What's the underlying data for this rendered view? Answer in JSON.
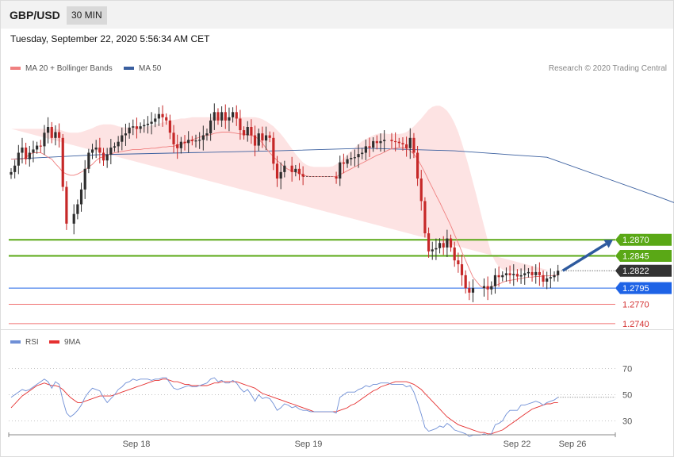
{
  "header": {
    "pair": "GBP/USD",
    "timeframe": "30 MIN",
    "timestamp": "Tuesday, September 22, 2020 5:56:34 AM CET"
  },
  "legend": {
    "ma20": "MA 20 + Bollinger Bands",
    "ma50": "MA 50",
    "credit": "Research © 2020 Trading Central",
    "rsi": "RSI",
    "rsi_ma": "9MA"
  },
  "colors": {
    "bull": "#2e2e2e",
    "bear": "#c62828",
    "ma20": "#f08080",
    "ma50": "#3a5f9f",
    "band": "#fde3e3",
    "resistance": "#5aa816",
    "pivot": "#1e63e6",
    "support": "#f07070",
    "current": "#333333",
    "arrow": "#2e5a9e",
    "rsi": "#6f8fd6",
    "rsi_ma": "#e53030"
  },
  "chart_data": [
    {
      "type": "candlestick",
      "title": "GBP/USD",
      "interval": "30 MIN",
      "ylim": [
        1.2725,
        1.3125
      ],
      "x_labels": [
        "Sep 18",
        "Sep 19",
        "Sep 22",
        "Sep 26"
      ],
      "levels": [
        {
          "value": 1.287,
          "label": "1.2870",
          "kind": "resistance"
        },
        {
          "value": 1.2845,
          "label": "1.2845",
          "kind": "resistance"
        },
        {
          "value": 1.2822,
          "label": "1.2822",
          "kind": "current"
        },
        {
          "value": 1.2795,
          "label": "1.2795",
          "kind": "pivot"
        },
        {
          "value": 1.277,
          "label": "1.2770",
          "kind": "support"
        },
        {
          "value": 1.274,
          "label": "1.2740",
          "kind": "support"
        }
      ],
      "close": [
        1.2975,
        1.2985,
        1.3005,
        1.3013,
        1.2995,
        1.3005,
        1.301,
        1.3016,
        1.3015,
        1.3036,
        1.3045,
        1.3028,
        1.3037,
        1.3028,
        1.2952,
        1.2895,
        1.2895,
        1.291,
        1.2925,
        1.2948,
        1.298,
        1.3005,
        1.301,
        1.3013,
        1.3005,
        1.2993,
        1.3002,
        1.3013,
        1.3015,
        1.3022,
        1.3032,
        1.3035,
        1.3044,
        1.3046,
        1.3042,
        1.3046,
        1.3048,
        1.305,
        1.3053,
        1.3058,
        1.3065,
        1.306,
        1.3055,
        1.3036,
        1.3018,
        1.3012,
        1.3022,
        1.302,
        1.3025,
        1.3023,
        1.3024,
        1.3025,
        1.3032,
        1.3035,
        1.3055,
        1.3068,
        1.3055,
        1.3068,
        1.3055,
        1.306,
        1.3068,
        1.3058,
        1.304,
        1.3032,
        1.3045,
        1.3032,
        1.3016,
        1.3035,
        1.3024,
        1.3032,
        1.3028,
        1.2988,
        1.2965,
        1.2975,
        1.2985,
        1.2985,
        1.2975,
        1.298,
        1.2972,
        1.2968,
        1.2968,
        1.2968,
        1.2968,
        1.2968,
        1.2968,
        1.2968,
        1.2968,
        1.2968,
        1.2965,
        1.299,
        1.2988,
        1.2995,
        1.2997,
        1.2998,
        1.3003,
        1.3005,
        1.3015,
        1.3013,
        1.3023,
        1.302,
        1.3023,
        1.3025,
        1.3025,
        1.3023,
        1.3022,
        1.302,
        1.3018,
        1.3012,
        1.3028,
        1.3005,
        1.2965,
        1.293,
        1.288,
        1.2852,
        1.2855,
        1.2857,
        1.2865,
        1.2858,
        1.2872,
        1.2858,
        1.2838,
        1.2832,
        1.2815,
        1.2795,
        1.2788,
        1.2795,
        1.2795,
        1.2795,
        1.2798,
        1.2793,
        1.2798,
        1.2815,
        1.2812,
        1.2815,
        1.2818,
        1.2815,
        1.2817,
        1.2813,
        1.2815,
        1.2818,
        1.282,
        1.2815,
        1.282,
        1.2815,
        1.2805,
        1.281,
        1.2812,
        1.2815,
        1.2822
      ],
      "ma20": [
        1.2995,
        1.2995,
        1.2995,
        1.2995,
        1.2998,
        1.3002,
        1.3005,
        1.3005,
        1.3005,
        1.3002,
        1.2998,
        1.2995,
        1.2988,
        1.2982,
        1.2975,
        1.2972,
        1.297,
        1.297,
        1.2972,
        1.2975,
        1.2978,
        1.2983,
        1.2987,
        1.2993,
        1.2997,
        1.2999,
        1.3001,
        1.3003,
        1.3005,
        1.3006,
        1.3007,
        1.3008,
        1.3009,
        1.301,
        1.301,
        1.301,
        1.3011,
        1.3011,
        1.3012,
        1.3012,
        1.3013,
        1.3014,
        1.3014,
        1.3015,
        1.3015,
        1.3017,
        1.3018,
        1.302,
        1.3023,
        1.3025,
        1.3027,
        1.3029,
        1.3031,
        1.3032,
        1.3033,
        1.3035,
        1.3036,
        1.3037,
        1.3037,
        1.3037,
        1.3036,
        1.3035,
        1.3034,
        1.3034,
        1.3033,
        1.3032,
        1.303,
        1.3026,
        1.302,
        1.3012,
        1.3005,
        1.2999,
        1.2993,
        1.2988,
        1.2983,
        1.2979,
        1.2977,
        1.2975,
        1.2973,
        1.297,
        1.2969,
        1.2968,
        1.2968,
        1.2968,
        1.2968,
        1.2968,
        1.2968,
        1.2968,
        1.2968,
        1.2971,
        1.2974,
        1.2977,
        1.298,
        1.2983,
        1.2986,
        1.2989,
        1.2992,
        1.2995,
        1.2998,
        1.3001,
        1.3003,
        1.3006,
        1.3009,
        1.3011,
        1.3012,
        1.3013,
        1.3013,
        1.3012,
        1.3008,
        1.3003,
        1.2995,
        1.2985,
        1.2974,
        1.2962,
        1.2951,
        1.2939,
        1.2928,
        1.2916,
        1.2904,
        1.2892,
        1.2878,
        1.2865,
        1.2851,
        1.2838,
        1.2825,
        1.2812,
        1.2805,
        1.2798,
        1.2795,
        1.2796,
        1.2797,
        1.2799,
        1.2801,
        1.2804,
        1.2806,
        1.2807,
        1.2808,
        1.2809,
        1.281,
        1.2811,
        1.2812,
        1.2812,
        1.2813,
        1.2813,
        1.2814,
        1.2814,
        1.2814,
        1.2815,
        1.2815
      ],
      "bb_upper": [
        1.3042,
        1.3042,
        1.3042,
        1.3042,
        1.3042,
        1.3042,
        1.3042,
        1.3042,
        1.3042,
        1.3042,
        1.3042,
        1.3042,
        1.3042,
        1.3041,
        1.3039,
        1.3037,
        1.3036,
        1.3036,
        1.3036,
        1.3037,
        1.3039,
        1.3041,
        1.3043,
        1.3046,
        1.3048,
        1.3049,
        1.3049,
        1.3049,
        1.3048,
        1.3046,
        1.3045,
        1.3044,
        1.3044,
        1.3044,
        1.3044,
        1.3044,
        1.3045,
        1.3046,
        1.3047,
        1.3049,
        1.305,
        1.3052,
        1.3054,
        1.3055,
        1.3056,
        1.3057,
        1.3058,
        1.3058,
        1.3059,
        1.306,
        1.306,
        1.306,
        1.306,
        1.306,
        1.306,
        1.306,
        1.306,
        1.306,
        1.306,
        1.306,
        1.306,
        1.306,
        1.306,
        1.306,
        1.306,
        1.306,
        1.306,
        1.3059,
        1.3057,
        1.3054,
        1.305,
        1.3046,
        1.304,
        1.3034,
        1.3027,
        1.3019,
        1.3011,
        1.3003,
        1.2996,
        1.299,
        1.2986,
        1.2984,
        1.2983,
        1.2983,
        1.2983,
        1.2983,
        1.2983,
        1.2984,
        1.2987,
        1.2991,
        1.2996,
        1.3002,
        1.3008,
        1.3013,
        1.3018,
        1.3023,
        1.3026,
        1.3029,
        1.3032,
        1.3034,
        1.3035,
        1.3035,
        1.3034,
        1.3034,
        1.3034,
        1.3034,
        1.3035,
        1.3037,
        1.3041,
        1.3046,
        1.3052,
        1.3058,
        1.3065,
        1.3072,
        1.3076,
        1.3078,
        1.3078,
        1.3075,
        1.307,
        1.3062,
        1.3051,
        1.3037,
        1.302,
        1.3001,
        1.2981,
        1.2959,
        1.2937,
        1.2914,
        1.2891,
        1.2869,
        1.2848,
        1.2836,
        1.2828,
        1.2824,
        1.2822,
        1.2822,
        1.2822,
        1.2822,
        1.2822,
        1.2822,
        1.2822,
        1.2822,
        1.2822,
        1.2822,
        1.2822,
        1.2822,
        1.2822
      ],
      "bb_lower": [
        1.2945,
        1.2945,
        1.2945,
        1.2945,
        1.2943,
        1.2939,
        1.2932,
        1.2922,
        1.2909,
        1.2894,
        1.2884,
        1.288,
        1.288,
        1.288,
        1.288,
        1.2882,
        1.2884,
        1.2889,
        1.2896,
        1.2904,
        1.2914,
        1.2924,
        1.2934,
        1.2943,
        1.2951,
        1.2958,
        1.2964,
        1.2969,
        1.2973,
        1.2977,
        1.298,
        1.2983,
        1.2986,
        1.2989,
        1.2991,
        1.2993,
        1.2995,
        1.2996,
        1.2997,
        1.2998,
        1.2998,
        1.2998,
        1.2998,
        1.2998,
        1.2998,
        1.2998,
        1.2998,
        1.2998,
        1.2998,
        1.2997,
        1.2997,
        1.2996,
        1.2996,
        1.2995,
        1.2995,
        1.2996,
        1.2996,
        1.2997,
        1.2997,
        1.2997,
        1.2996,
        1.2995,
        1.2994,
        1.2993,
        1.2992,
        1.2991,
        1.2989,
        1.2986,
        1.2982,
        1.2977,
        1.2972,
        1.2966,
        1.296,
        1.2955,
        1.295,
        1.2946,
        1.2942,
        1.2939,
        1.2937,
        1.2936,
        1.2935,
        1.2935,
        1.2935,
        1.2935,
        1.2935,
        1.2935,
        1.2936,
        1.2938,
        1.294,
        1.2943,
        1.2947,
        1.2951,
        1.2955,
        1.2958,
        1.2961,
        1.2963,
        1.2965,
        1.2967,
        1.2969,
        1.297,
        1.2972,
        1.2973,
        1.2975,
        1.2976,
        1.2978,
        1.2979,
        1.2978,
        1.2972,
        1.2962,
        1.2947,
        1.293,
        1.291,
        1.289,
        1.287,
        1.2851,
        1.2833,
        1.2818,
        1.2806,
        1.2797,
        1.2791,
        1.2786,
        1.2783,
        1.2781,
        1.278,
        1.2779,
        1.2779,
        1.2779,
        1.278,
        1.2781,
        1.2783,
        1.2785,
        1.2787,
        1.2789,
        1.2791,
        1.2793,
        1.2795,
        1.2797,
        1.2799,
        1.28,
        1.2801,
        1.2802,
        1.2803,
        1.2803,
        1.2803,
        1.2803,
        1.2803,
        1.2803,
        1.2803,
        1.2803
      ],
      "ma50_points": [
        [
          0,
          1.2995
        ],
        [
          24,
          1.3002
        ],
        [
          48,
          1.3005
        ],
        [
          72,
          1.3008
        ],
        [
          96,
          1.3012
        ],
        [
          120,
          1.3008
        ],
        [
          145,
          1.2998
        ],
        [
          176,
          1.2935
        ],
        [
          205,
          1.2872
        ],
        [
          215,
          1.2856
        ],
        [
          222,
          1.2842
        ]
      ]
    },
    {
      "type": "line",
      "title": "RSI",
      "ylim": [
        15,
        85
      ],
      "y_ticks": [
        "70",
        "50",
        "30"
      ],
      "series": [
        {
          "name": "RSI",
          "values": [
            48,
            50,
            52,
            54,
            53,
            54,
            56,
            58,
            60,
            62,
            60,
            55,
            60,
            58,
            46,
            36,
            33,
            35,
            38,
            42,
            48,
            52,
            55,
            54,
            53,
            48,
            44,
            47,
            50,
            54,
            56,
            59,
            60,
            62,
            61,
            62,
            62,
            62,
            61,
            62,
            62,
            63,
            63,
            59,
            55,
            54,
            55,
            56,
            57,
            56,
            56,
            57,
            58,
            59,
            62,
            63,
            60,
            61,
            59,
            59,
            61,
            59,
            55,
            52,
            54,
            50,
            45,
            50,
            47,
            48,
            47,
            43,
            38,
            40,
            43,
            42,
            40,
            41,
            39,
            38,
            38,
            37,
            37,
            37,
            37,
            37,
            37,
            37,
            36,
            48,
            50,
            52,
            52,
            52,
            54,
            55,
            57,
            56,
            58,
            58,
            59,
            59,
            59,
            58,
            58,
            58,
            58,
            56,
            57,
            52,
            44,
            35,
            25,
            22,
            23,
            24,
            26,
            25,
            28,
            26,
            23,
            22,
            21,
            20,
            18,
            19,
            19,
            19,
            20,
            19,
            20,
            27,
            28,
            30,
            35,
            38,
            38,
            38,
            42,
            42,
            43,
            44,
            45,
            44,
            42,
            44,
            45,
            46,
            48
          ]
        },
        {
          "name": "9MA",
          "values": [
            40,
            43,
            46,
            49,
            51,
            53,
            55,
            57,
            58,
            59,
            58,
            57,
            57,
            56,
            54,
            51,
            48,
            46,
            44,
            44,
            45,
            46,
            47,
            48,
            49,
            49,
            49,
            49,
            50,
            51,
            52,
            53,
            54,
            55,
            56,
            57,
            58,
            59,
            60,
            61,
            61,
            62,
            62,
            61,
            60,
            60,
            59,
            58,
            58,
            57,
            57,
            57,
            57,
            57,
            58,
            59,
            59,
            60,
            60,
            60,
            60,
            60,
            59,
            58,
            57,
            56,
            55,
            53,
            51,
            50,
            49,
            48,
            47,
            46,
            45,
            44,
            43,
            42,
            41,
            40,
            39,
            38,
            37,
            37,
            37,
            37,
            37,
            37,
            37,
            38,
            39,
            40,
            42,
            43,
            45,
            47,
            49,
            51,
            53,
            54,
            56,
            57,
            58,
            59,
            60,
            60,
            60,
            60,
            59,
            58,
            56,
            54,
            51,
            48,
            45,
            42,
            39,
            36,
            33,
            31,
            29,
            27,
            26,
            25,
            24,
            23,
            22,
            21,
            21,
            20,
            20,
            21,
            22,
            23,
            25,
            27,
            29,
            31,
            33,
            35,
            37,
            39,
            40,
            41,
            42,
            43,
            43,
            44,
            44
          ]
        }
      ]
    }
  ]
}
